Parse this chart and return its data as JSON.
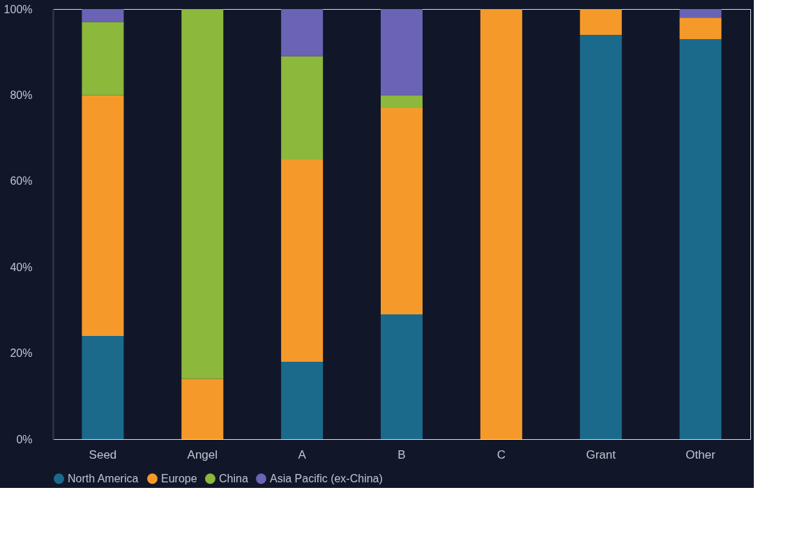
{
  "chart_data": {
    "type": "bar",
    "stacked": true,
    "categories": [
      "Seed",
      "Angel",
      "A",
      "B",
      "C",
      "Grant",
      "Other"
    ],
    "series": [
      {
        "name": "North America",
        "color": "#1b6a8c",
        "values": [
          24,
          0,
          18,
          29,
          0,
          94,
          93
        ]
      },
      {
        "name": "Europe",
        "color": "#f59a2a",
        "values": [
          56,
          14,
          47,
          48,
          100,
          6,
          5
        ]
      },
      {
        "name": "China",
        "color": "#8cb83c",
        "values": [
          17,
          86,
          24,
          3,
          0,
          0,
          0
        ]
      },
      {
        "name": "Asia Pacific (ex-China)",
        "color": "#6b63b5",
        "values": [
          3,
          0,
          11,
          20,
          0,
          0,
          2
        ]
      }
    ],
    "ylim": [
      0,
      100
    ],
    "yticks": [
      {
        "value": 0,
        "label": "0%"
      },
      {
        "value": 20,
        "label": "20%"
      },
      {
        "value": 40,
        "label": "40%"
      },
      {
        "value": 60,
        "label": "60%"
      },
      {
        "value": 80,
        "label": "80%"
      },
      {
        "value": 100,
        "label": "100%"
      }
    ],
    "grid": false,
    "legend": "bottom"
  }
}
